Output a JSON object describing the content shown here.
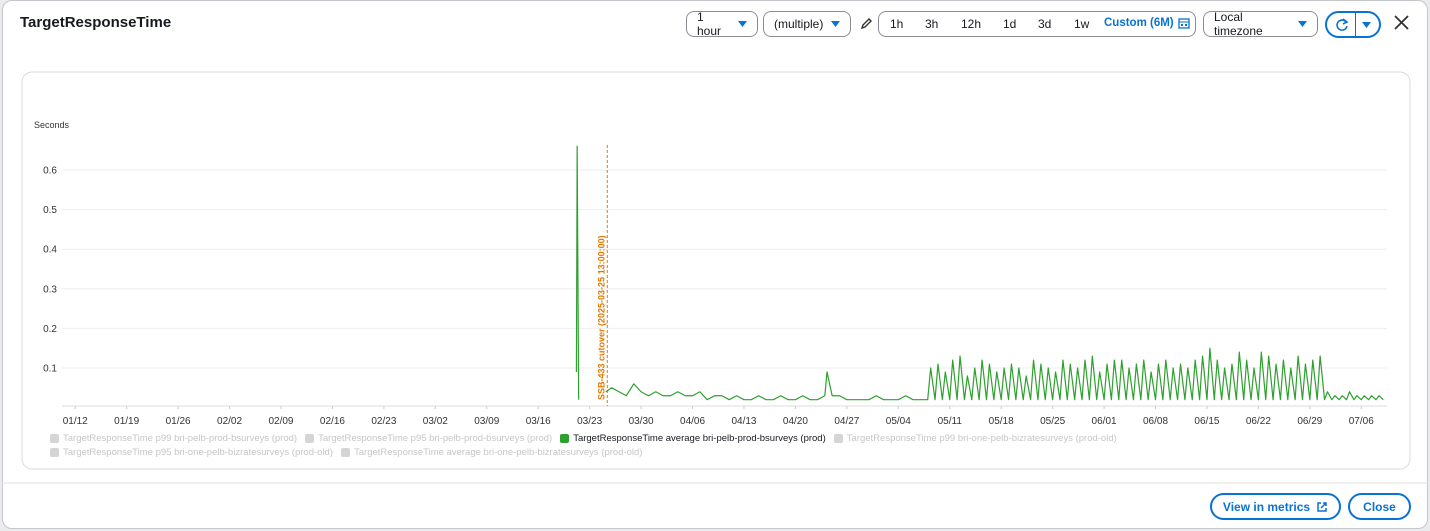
{
  "header": {
    "title": "TargetResponseTime",
    "period": "1 hour",
    "statistic": "(multiple)",
    "ranges": [
      "1h",
      "3h",
      "12h",
      "1d",
      "3d",
      "1w"
    ],
    "custom_range": "Custom (6M)",
    "timezone": "Local timezone"
  },
  "footer": {
    "view_in_metrics": "View in metrics",
    "close": "Close"
  },
  "chart_data": {
    "type": "line",
    "y_label": "Seconds",
    "xlim": [
      -1.8,
      178.5
    ],
    "xticks": [
      {
        "value": 0,
        "label": "01/12"
      },
      {
        "value": 7,
        "label": "01/19"
      },
      {
        "value": 14,
        "label": "01/26"
      },
      {
        "value": 21,
        "label": "02/02"
      },
      {
        "value": 28,
        "label": "02/09"
      },
      {
        "value": 35,
        "label": "02/16"
      },
      {
        "value": 42,
        "label": "02/23"
      },
      {
        "value": 49,
        "label": "03/02"
      },
      {
        "value": 56,
        "label": "03/09"
      },
      {
        "value": 63,
        "label": "03/16"
      },
      {
        "value": 70,
        "label": "03/23"
      },
      {
        "value": 77,
        "label": "03/30"
      },
      {
        "value": 84,
        "label": "04/06"
      },
      {
        "value": 91,
        "label": "04/13"
      },
      {
        "value": 98,
        "label": "04/20"
      },
      {
        "value": 105,
        "label": "04/27"
      },
      {
        "value": 112,
        "label": "05/04"
      },
      {
        "value": 119,
        "label": "05/11"
      },
      {
        "value": 126,
        "label": "05/18"
      },
      {
        "value": 133,
        "label": "05/25"
      },
      {
        "value": 140,
        "label": "06/01"
      },
      {
        "value": 147,
        "label": "06/08"
      },
      {
        "value": 154,
        "label": "06/15"
      },
      {
        "value": 161,
        "label": "06/22"
      },
      {
        "value": 168,
        "label": "06/29"
      },
      {
        "value": 175,
        "label": "07/06"
      }
    ],
    "ylim": [
      0,
      0.7
    ],
    "yticks": [
      0.1,
      0.2,
      0.3,
      0.4,
      0.5,
      0.6
    ],
    "grid": true,
    "x": [
      68.2,
      68.3,
      68.5,
      70,
      72.2,
      73,
      74,
      75,
      76,
      77,
      78,
      79,
      80,
      81,
      82,
      83,
      84,
      85,
      86,
      87,
      88,
      89,
      90,
      91,
      92,
      93,
      94,
      95,
      96,
      97,
      98,
      99,
      100,
      101,
      102,
      102.3,
      103,
      104,
      105,
      106,
      107,
      108,
      109,
      110,
      111,
      112,
      113,
      114,
      115,
      116,
      116.4,
      117,
      117.4,
      118,
      118.4,
      119,
      119.4,
      120,
      120.4,
      121,
      121.4,
      122,
      122.4,
      123,
      123.4,
      124,
      124.4,
      125,
      125.4,
      126,
      126.4,
      127,
      127.4,
      128,
      128.4,
      129,
      129.4,
      130,
      130.4,
      131,
      131.4,
      132,
      132.4,
      133,
      133.4,
      134,
      134.4,
      135,
      135.4,
      136,
      136.4,
      137,
      137.4,
      138,
      138.4,
      139,
      139.4,
      140,
      140.4,
      141,
      141.4,
      142,
      142.4,
      143,
      143.4,
      144,
      144.4,
      145,
      145.4,
      146,
      146.4,
      147,
      147.4,
      148,
      148.4,
      149,
      149.4,
      150,
      150.4,
      151,
      151.4,
      152,
      152.4,
      153,
      153.4,
      154,
      154.4,
      155,
      155.4,
      156,
      156.4,
      157,
      157.4,
      158,
      158.4,
      159,
      159.4,
      160,
      160.4,
      161,
      161.4,
      162,
      162.4,
      163,
      163.4,
      164,
      164.4,
      165,
      165.4,
      166,
      166.4,
      167,
      167.4,
      168,
      168.4,
      169,
      169.4,
      170,
      170.4,
      171,
      171.4,
      172,
      172.4,
      173,
      173.4,
      174,
      174.4,
      175,
      175.4,
      176,
      176.4,
      177,
      177.4,
      178
    ],
    "series": [
      {
        "name": "TargetResponseTime p99 bri-pelb-prod-bsurveys (prod)",
        "color": "#d5d5d5",
        "visible": false
      },
      {
        "name": "TargetResponseTime p95 bri-pelb-prod-bsurveys (prod)",
        "color": "#d5d5d5",
        "visible": false
      },
      {
        "name": "TargetResponseTime average bri-pelb-prod-bsurveys (prod)",
        "color": "#2ea02e",
        "visible": true,
        "values": [
          0.09,
          0.66,
          0.02,
          null,
          0.04,
          0.05,
          0.04,
          0.03,
          0.06,
          0.04,
          0.03,
          0.04,
          0.03,
          0.03,
          0.04,
          0.03,
          0.03,
          0.04,
          0.02,
          0.03,
          0.03,
          0.02,
          0.03,
          0.02,
          0.02,
          0.03,
          0.02,
          0.02,
          0.03,
          0.02,
          0.02,
          0.03,
          0.02,
          0.02,
          0.03,
          0.09,
          0.03,
          0.03,
          0.02,
          0.02,
          0.02,
          0.02,
          0.03,
          0.02,
          0.02,
          0.02,
          0.03,
          0.02,
          0.02,
          0.02,
          0.1,
          0.02,
          0.11,
          0.02,
          0.09,
          0.02,
          0.12,
          0.02,
          0.13,
          0.02,
          0.08,
          0.02,
          0.1,
          0.02,
          0.12,
          0.02,
          0.11,
          0.02,
          0.09,
          0.02,
          0.1,
          0.02,
          0.11,
          0.02,
          0.1,
          0.02,
          0.08,
          0.02,
          0.12,
          0.02,
          0.11,
          0.02,
          0.1,
          0.02,
          0.09,
          0.02,
          0.12,
          0.02,
          0.11,
          0.02,
          0.1,
          0.02,
          0.12,
          0.02,
          0.13,
          0.02,
          0.09,
          0.02,
          0.11,
          0.02,
          0.12,
          0.02,
          0.12,
          0.02,
          0.1,
          0.02,
          0.11,
          0.02,
          0.12,
          0.02,
          0.09,
          0.02,
          0.11,
          0.02,
          0.12,
          0.02,
          0.1,
          0.02,
          0.11,
          0.02,
          0.1,
          0.02,
          0.12,
          0.02,
          0.13,
          0.02,
          0.15,
          0.02,
          0.12,
          0.02,
          0.1,
          0.02,
          0.11,
          0.02,
          0.14,
          0.02,
          0.12,
          0.02,
          0.1,
          0.02,
          0.14,
          0.02,
          0.13,
          0.02,
          0.11,
          0.02,
          0.12,
          0.02,
          0.1,
          0.02,
          0.13,
          0.02,
          0.11,
          0.02,
          0.12,
          0.02,
          0.13,
          0.02,
          0.04,
          0.02,
          0.03,
          0.02,
          0.03,
          0.02,
          0.04,
          0.02,
          0.03,
          0.02,
          0.03,
          0.02,
          0.03,
          0.02,
          0.03,
          0.02
        ]
      },
      {
        "name": "TargetResponseTime p99 bri-one-pelb-bizratesurveys (prod-old)",
        "color": "#d5d5d5",
        "visible": false
      },
      {
        "name": "TargetResponseTime p95 bri-one-pelb-bizratesurveys (prod-old)",
        "color": "#d5d5d5",
        "visible": false
      },
      {
        "name": "TargetResponseTime average bri-one-pelb-bizratesurveys (prod-old)",
        "color": "#d5d5d5",
        "visible": false
      }
    ],
    "annotations": [
      {
        "x": 72.4,
        "label": "SSB-433 cutover (2025-03-25 13:00:00)",
        "color": "#e07b00"
      }
    ]
  }
}
